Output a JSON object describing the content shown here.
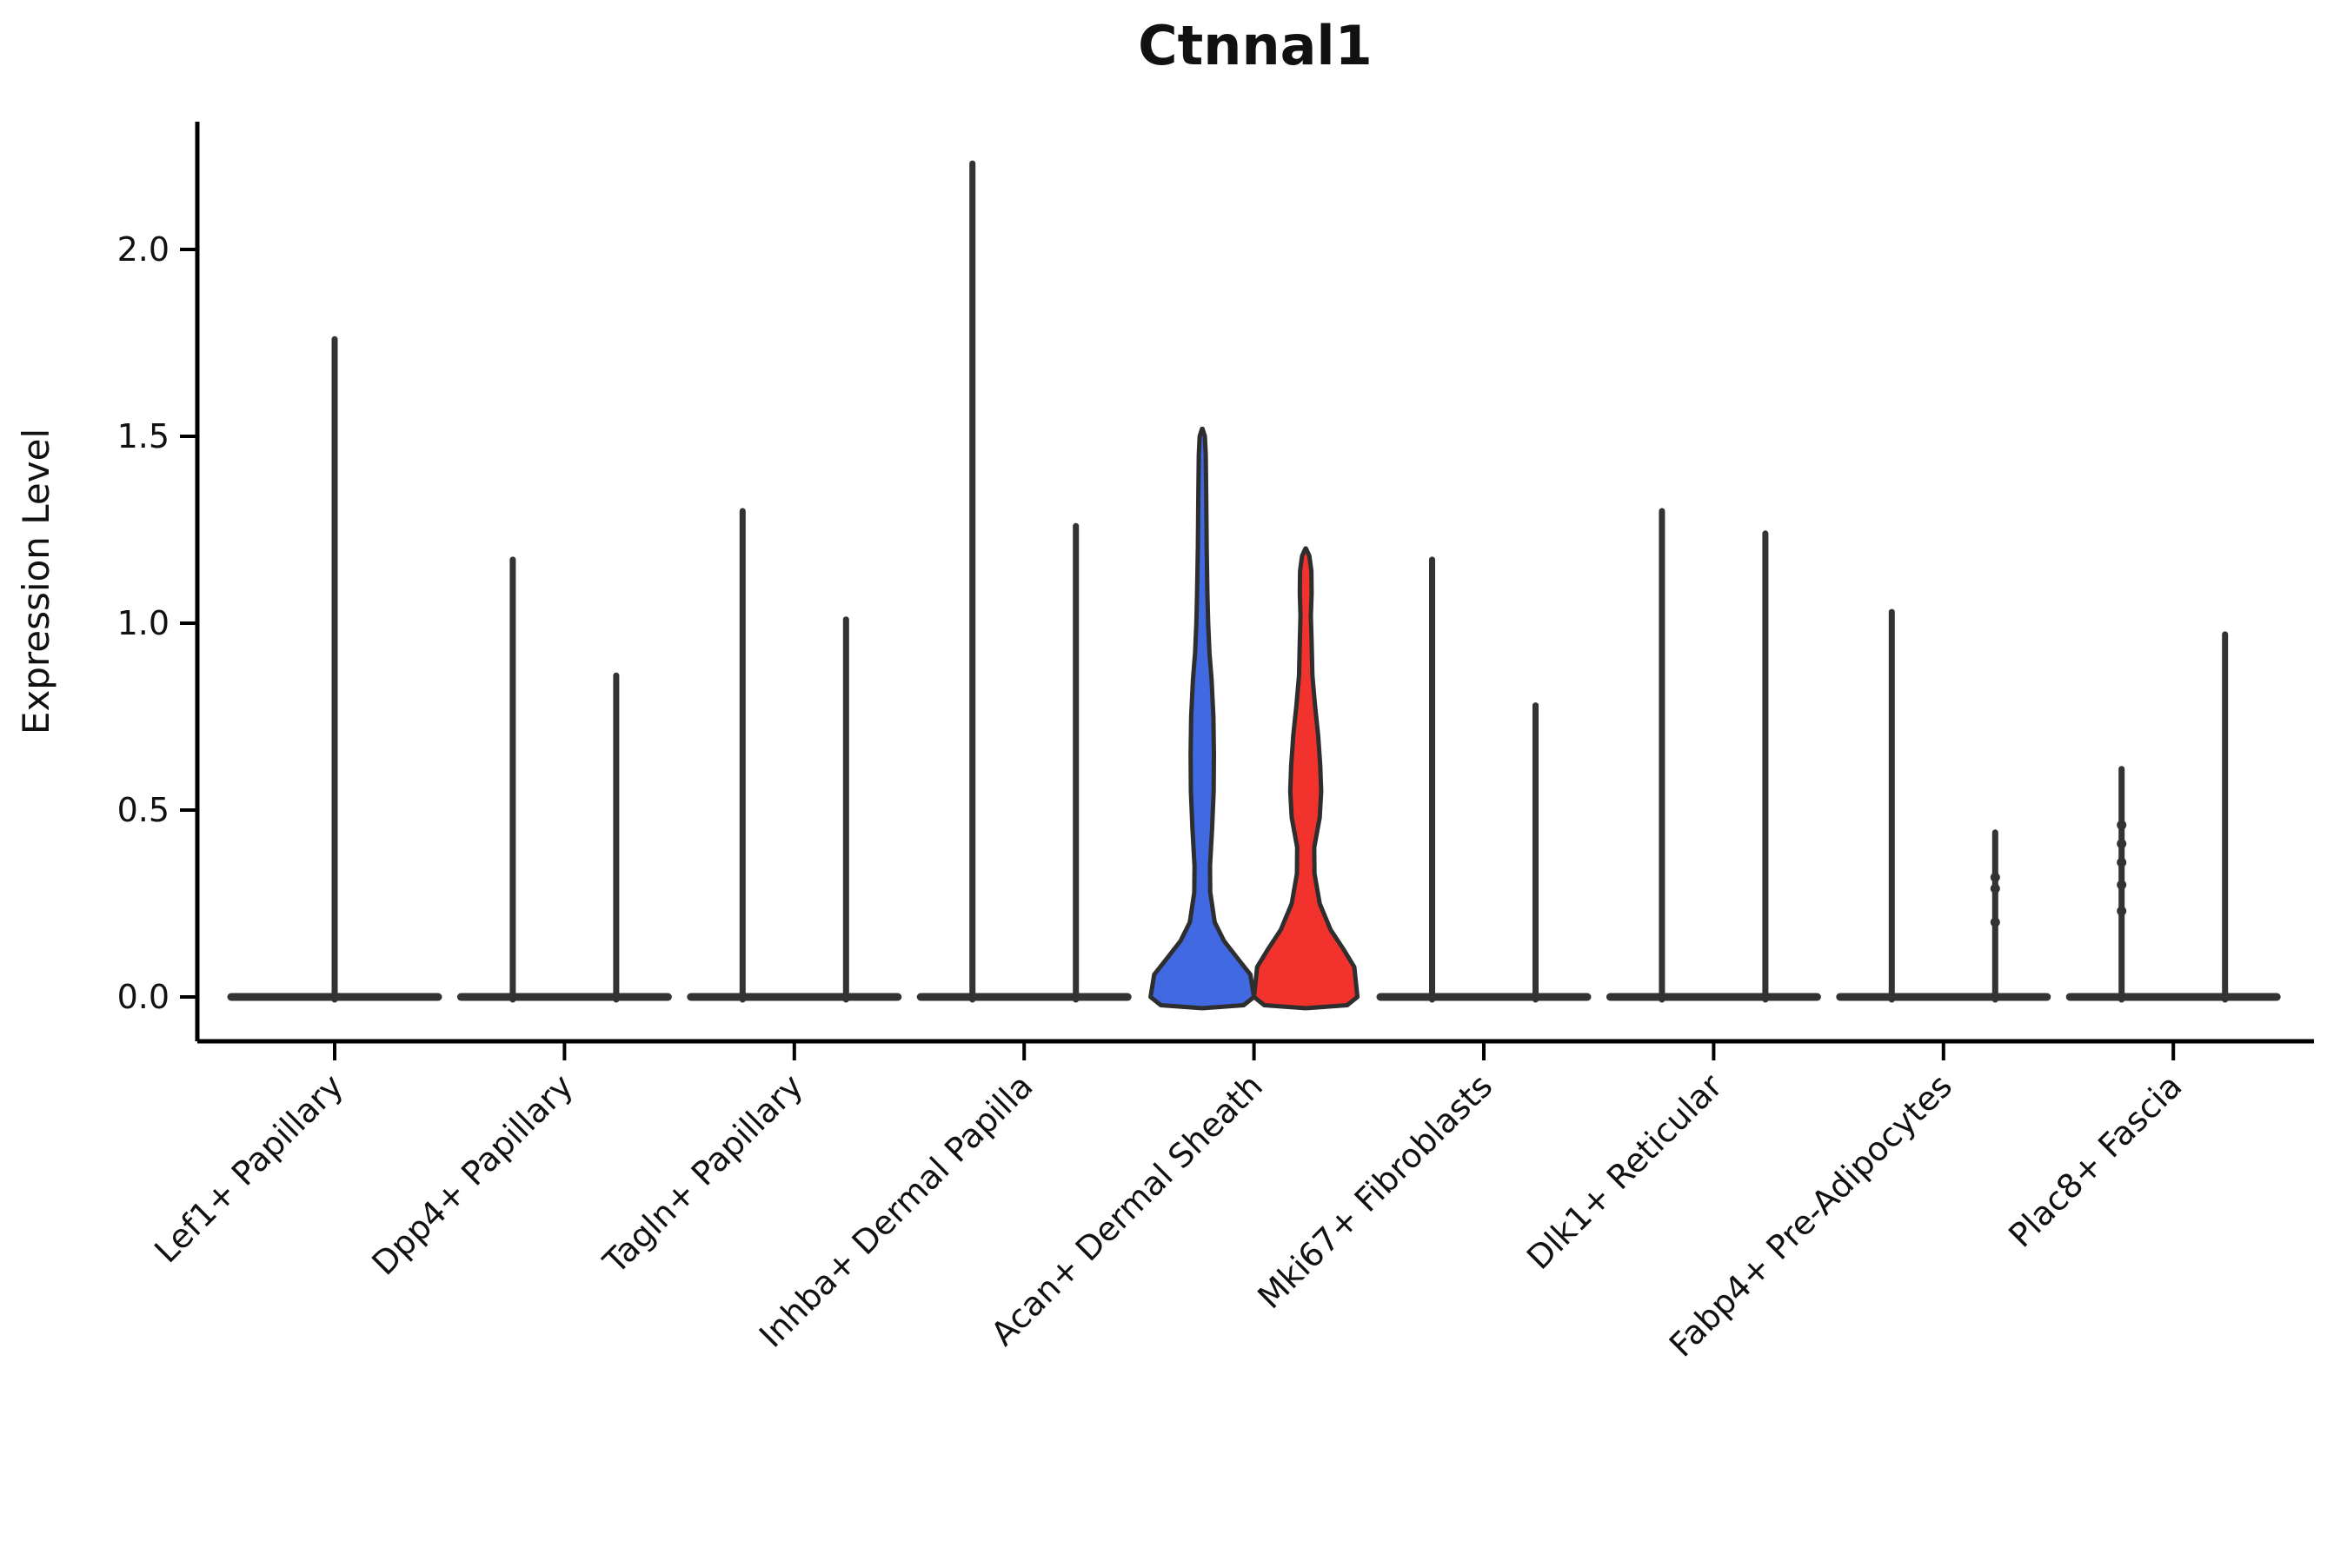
{
  "chart_data": {
    "type": "violin",
    "title": "Ctnnal1",
    "xlabel": "",
    "ylabel": "Expression Level",
    "ytick_labels": [
      "0.0",
      "0.5",
      "1.0",
      "1.5",
      "2.0"
    ],
    "ytick_values": [
      0.0,
      0.5,
      1.0,
      1.5,
      2.0
    ],
    "ylim": [
      -0.12,
      2.35
    ],
    "grid": false,
    "legend": null,
    "x_tick_rotation": 45,
    "categories": [
      "Lef1+ Papillary",
      "Dpp4+ Papillary",
      "Tagln+ Papillary",
      "Inhba+ Dermal Papilla",
      "Acan+ Dermal Sheath",
      "Mki67+ Fibroblasts",
      "Dlk1+ Reticular",
      "Fabp4+ Pre-Adipocytes",
      "Plac8+ Fascia"
    ],
    "colors": {
      "dark": "#333333",
      "blue": "#4169E1",
      "red": "#F2332D",
      "outline": "#2E2E2E"
    },
    "series": [
      {
        "category": "Lef1+ Papillary",
        "violins": [
          {
            "side": "center",
            "max": 1.76,
            "color": "dark",
            "shape": "spike"
          }
        ]
      },
      {
        "category": "Dpp4+ Papillary",
        "violins": [
          {
            "side": "left",
            "max": 1.17,
            "color": "dark",
            "shape": "spike"
          },
          {
            "side": "right",
            "max": 0.86,
            "color": "dark",
            "shape": "spike"
          }
        ]
      },
      {
        "category": "Tagln+ Papillary",
        "violins": [
          {
            "side": "left",
            "max": 1.3,
            "color": "dark",
            "shape": "spike"
          },
          {
            "side": "right",
            "max": 1.01,
            "color": "dark",
            "shape": "spike"
          }
        ]
      },
      {
        "category": "Inhba+ Dermal Papilla",
        "violins": [
          {
            "side": "left",
            "max": 2.23,
            "color": "dark",
            "shape": "spike"
          },
          {
            "side": "right",
            "max": 1.26,
            "color": "dark",
            "shape": "spike"
          }
        ]
      },
      {
        "category": "Acan+ Dermal Sheath",
        "violins": [
          {
            "side": "left",
            "max": 1.52,
            "color": "blue",
            "shape": "profile",
            "profile": "blue"
          },
          {
            "side": "right",
            "max": 1.2,
            "color": "red",
            "shape": "profile",
            "profile": "red"
          }
        ]
      },
      {
        "category": "Mki67+ Fibroblasts",
        "violins": [
          {
            "side": "left",
            "max": 1.17,
            "color": "dark",
            "shape": "spike"
          },
          {
            "side": "right",
            "max": 0.78,
            "color": "dark",
            "shape": "spike"
          }
        ]
      },
      {
        "category": "Dlk1+ Reticular",
        "violins": [
          {
            "side": "left",
            "max": 1.3,
            "color": "dark",
            "shape": "spike"
          },
          {
            "side": "right",
            "max": 1.24,
            "color": "dark",
            "shape": "spike"
          }
        ]
      },
      {
        "category": "Fabp4+ Pre-Adipocytes",
        "violins": [
          {
            "side": "left",
            "max": 1.03,
            "color": "dark",
            "shape": "spike"
          },
          {
            "side": "right",
            "max": 0.44,
            "color": "dark",
            "shape": "spike",
            "dots": [
              0.2,
              0.29,
              0.32
            ]
          }
        ]
      },
      {
        "category": "Plac8+ Fascia",
        "violins": [
          {
            "side": "left",
            "max": 0.61,
            "color": "dark",
            "shape": "spike",
            "dots": [
              0.23,
              0.3,
              0.36,
              0.41,
              0.46
            ]
          },
          {
            "side": "right",
            "max": 0.97,
            "color": "dark",
            "shape": "spike"
          }
        ]
      }
    ],
    "profiles": {
      "blue": [
        [
          -0.03,
          0.02
        ],
        [
          -0.022,
          0.8
        ],
        [
          0.0,
          1.0
        ],
        [
          0.06,
          0.93
        ],
        [
          0.1,
          0.7
        ],
        [
          0.15,
          0.42
        ],
        [
          0.2,
          0.24
        ],
        [
          0.28,
          0.155
        ],
        [
          0.35,
          0.15
        ],
        [
          0.45,
          0.19
        ],
        [
          0.55,
          0.22
        ],
        [
          0.65,
          0.225
        ],
        [
          0.75,
          0.215
        ],
        [
          0.85,
          0.18
        ],
        [
          0.92,
          0.14
        ],
        [
          1.0,
          0.115
        ],
        [
          1.08,
          0.1
        ],
        [
          1.2,
          0.085
        ],
        [
          1.35,
          0.075
        ],
        [
          1.45,
          0.068
        ],
        [
          1.5,
          0.05
        ],
        [
          1.52,
          0.005
        ]
      ],
      "red": [
        [
          -0.03,
          0.02
        ],
        [
          -0.022,
          0.8
        ],
        [
          0.0,
          1.0
        ],
        [
          0.08,
          0.94
        ],
        [
          0.13,
          0.72
        ],
        [
          0.18,
          0.48
        ],
        [
          0.25,
          0.27
        ],
        [
          0.33,
          0.17
        ],
        [
          0.4,
          0.165
        ],
        [
          0.48,
          0.27
        ],
        [
          0.55,
          0.3
        ],
        [
          0.62,
          0.28
        ],
        [
          0.7,
          0.24
        ],
        [
          0.78,
          0.18
        ],
        [
          0.86,
          0.13
        ],
        [
          0.95,
          0.115
        ],
        [
          1.02,
          0.1
        ],
        [
          1.08,
          0.115
        ],
        [
          1.14,
          0.11
        ],
        [
          1.18,
          0.07
        ],
        [
          1.2,
          0.005
        ]
      ]
    }
  }
}
